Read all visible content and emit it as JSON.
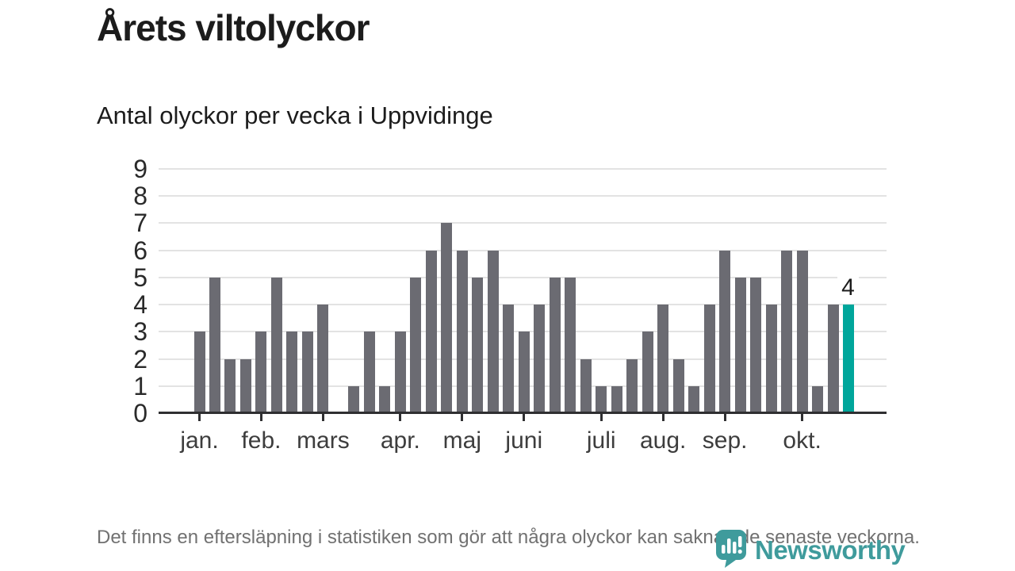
{
  "page": {
    "title": "Årets viltolyckor",
    "subtitle": "Antal olyckor per vecka i Uppvidinge",
    "footnote": "Det finns en eftersläpning i statistiken som gör att några olyckor kan saknas de senaste veckorna.",
    "brand": "Newsworthy"
  },
  "colors": {
    "bar": "#6b6b72",
    "highlight": "#00a69b",
    "grid": "#e3e3e3",
    "axis": "#2f2f31",
    "brand_teal": "#3f9b9c"
  },
  "chart_data": {
    "type": "bar",
    "title": "Antal olyckor per vecka i Uppvidinge",
    "xlabel": "",
    "ylabel": "",
    "x_unit": "vecka",
    "ylim": [
      0,
      9
    ],
    "yticks": [
      0,
      1,
      2,
      3,
      4,
      5,
      6,
      7,
      8,
      9
    ],
    "grid": true,
    "legend": "none",
    "values": [
      3,
      5,
      2,
      2,
      3,
      5,
      3,
      3,
      4,
      0,
      1,
      3,
      1,
      3,
      5,
      6,
      7,
      6,
      5,
      6,
      4,
      3,
      4,
      5,
      5,
      2,
      1,
      1,
      2,
      3,
      4,
      2,
      1,
      4,
      6,
      5,
      5,
      4,
      6,
      6,
      1,
      4,
      4
    ],
    "highlight_index": 42,
    "highlight_value_label": "4",
    "month_ticks": [
      {
        "label": "jan.",
        "week": 1
      },
      {
        "label": "feb.",
        "week": 5
      },
      {
        "label": "mars",
        "week": 9
      },
      {
        "label": "apr.",
        "week": 14
      },
      {
        "label": "maj",
        "week": 18
      },
      {
        "label": "juni",
        "week": 22
      },
      {
        "label": "juli",
        "week": 27
      },
      {
        "label": "aug.",
        "week": 31
      },
      {
        "label": "sep.",
        "week": 35
      },
      {
        "label": "okt.",
        "week": 40
      }
    ]
  }
}
